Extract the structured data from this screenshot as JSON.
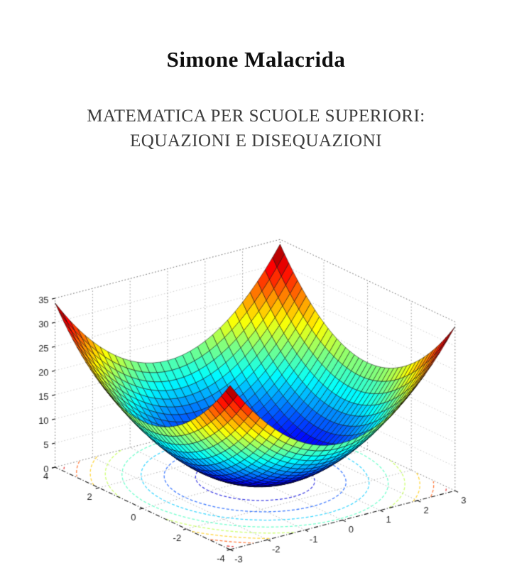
{
  "cover": {
    "author": "Simone Malacrida",
    "title_line1": "MATEMATICA PER SCUOLE SUPERIORI:",
    "title_line2": "EQUAZIONI E DISEQUAZIONI"
  },
  "chart_data": {
    "type": "surface",
    "title": "",
    "function": "z = 2*x^2 + y^2",
    "coefficients": {
      "x2": 2,
      "y2": 1
    },
    "x_range": [
      -3,
      3
    ],
    "y_range": [
      -4,
      4
    ],
    "z_range": [
      0,
      35
    ],
    "mesh_step": 0.2,
    "x_ticks": [
      -3,
      -2,
      -1,
      0,
      1,
      2,
      3
    ],
    "y_ticks": [
      -4,
      -2,
      0,
      2,
      4
    ],
    "z_ticks": [
      0,
      5,
      10,
      15,
      20,
      25,
      30,
      35
    ],
    "z_max_surface": 34,
    "colormap": "jet",
    "mesh_edge_color": "#000000",
    "contour_levels": [
      3,
      7,
      11,
      15,
      19,
      23,
      27,
      31
    ],
    "contour_plane": "z=0",
    "view": {
      "azimuth": -37.5,
      "elevation": 30
    },
    "grid": true,
    "legend": "none",
    "tick_label_color": "#222222"
  }
}
